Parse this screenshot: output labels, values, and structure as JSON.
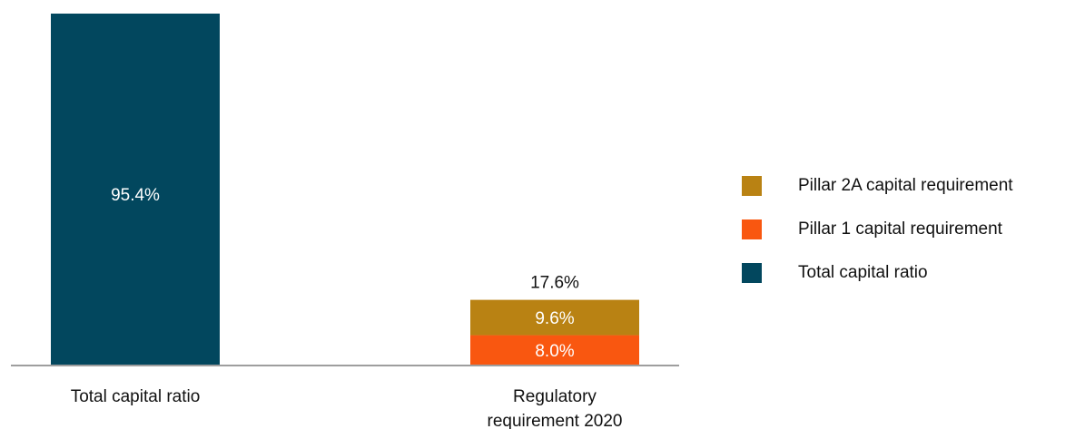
{
  "chart_data": {
    "type": "bar",
    "stacked": true,
    "categories": [
      "Total capital ratio",
      "Regulatory requirement 2020"
    ],
    "series": [
      {
        "name": "Total capital ratio",
        "values": [
          95.4,
          null
        ],
        "color": "#02475E",
        "labels": [
          "95.4%",
          ""
        ]
      },
      {
        "name": "Pillar 1 capital requirement",
        "values": [
          null,
          8.0
        ],
        "color": "#F95710",
        "labels": [
          "",
          "8.0%"
        ]
      },
      {
        "name": "Pillar 2A capital requirement",
        "values": [
          null,
          9.6
        ],
        "color": "#B98213",
        "labels": [
          "",
          "9.6%"
        ]
      }
    ],
    "totals": [
      "",
      "17.6%"
    ],
    "legend": {
      "position": "right",
      "items": [
        {
          "name": "Pillar 2A capital requirement",
          "color": "#B98213"
        },
        {
          "name": "Pillar 1 capital requirement",
          "color": "#F95710"
        },
        {
          "name": "Total capital ratio",
          "color": "#02475E"
        }
      ]
    },
    "grid": false,
    "label_color_inside": "#ffffff",
    "label_color_outside": "#111111",
    "axis_color": "#7f7f7f"
  }
}
